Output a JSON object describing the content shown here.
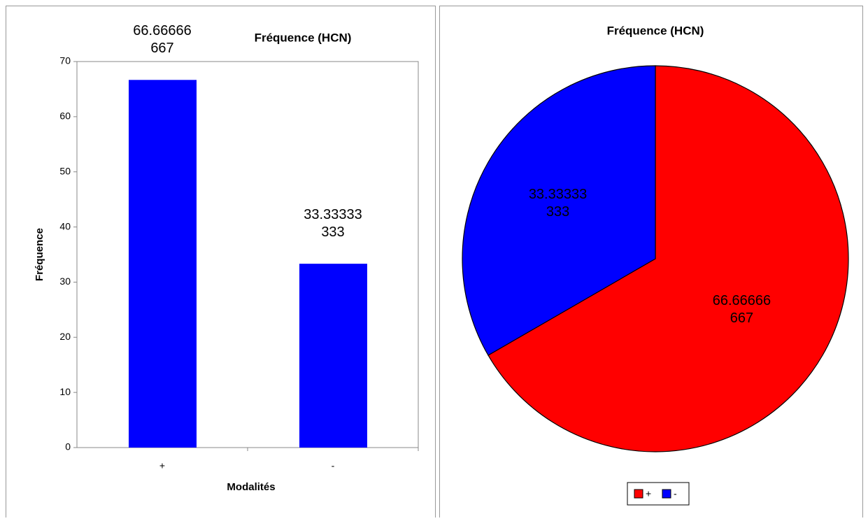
{
  "chart_data": [
    {
      "type": "bar",
      "title": "Fréquence (HCN)",
      "x_label": "Modalités",
      "y_label": "Fréquence",
      "categories": [
        "+",
        "-"
      ],
      "values": [
        66.66666667,
        33.33333333
      ],
      "color": "#0000ff",
      "ylim": [
        0,
        70
      ],
      "yticks": [
        0,
        10,
        20,
        30,
        40,
        50,
        60,
        70
      ]
    },
    {
      "type": "pie",
      "title": "Fréquence (HCN)",
      "categories": [
        "+",
        "-"
      ],
      "values": [
        66.66666667,
        33.33333333
      ],
      "colors": [
        "#ff0000",
        "#0000ff"
      ],
      "legend": "bottom"
    }
  ]
}
